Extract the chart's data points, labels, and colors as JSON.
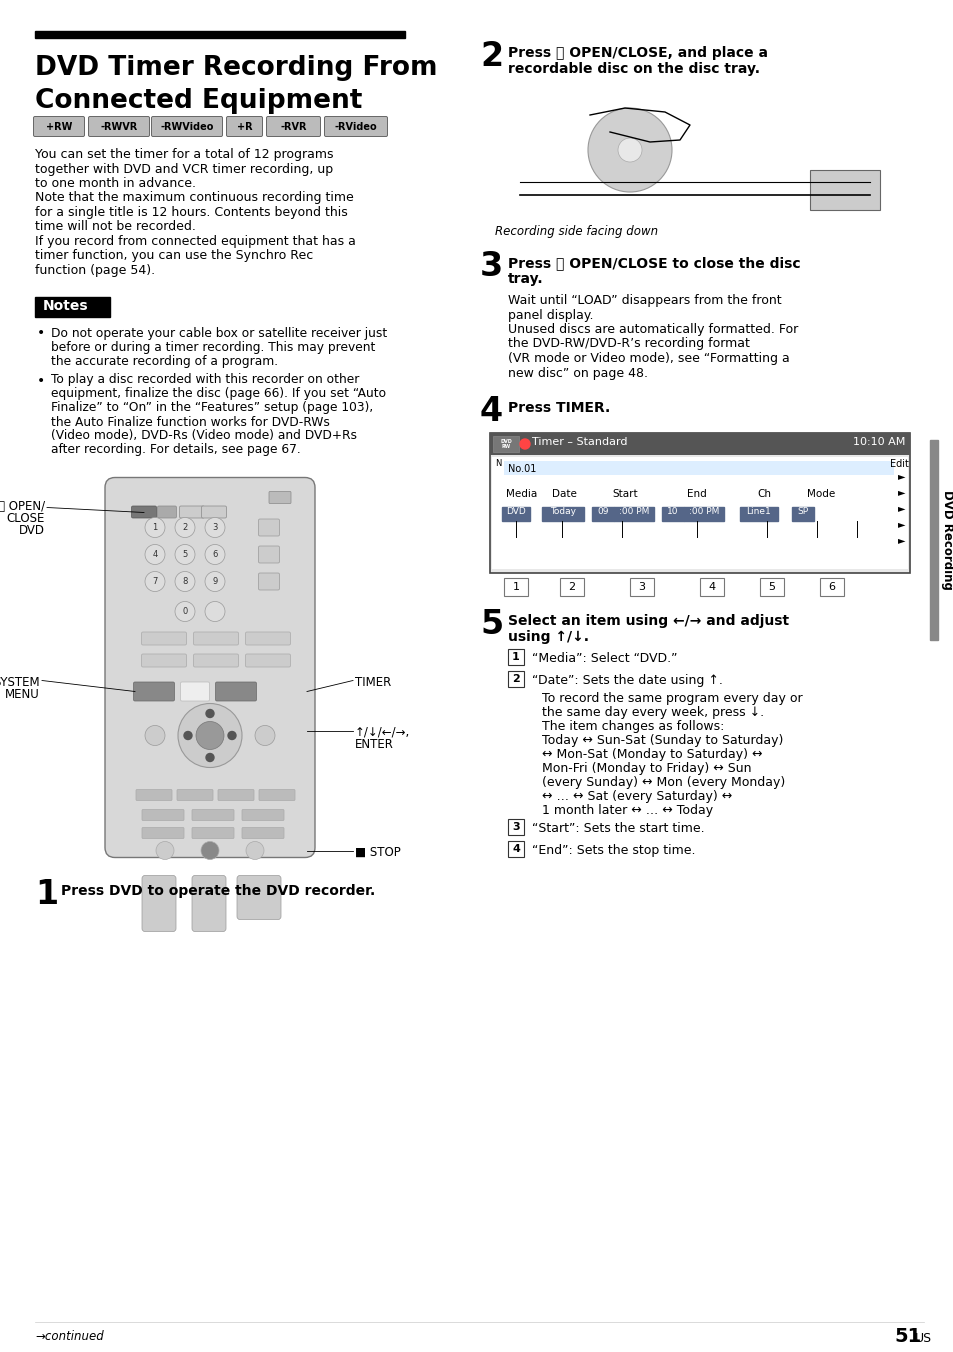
{
  "bg_color": "#ffffff",
  "text_color": "#000000",
  "title_line1": "DVD Timer Recording From",
  "title_line2": "Connected Equipment",
  "disc_labels": [
    "+RW",
    "-RWVR",
    "-RWVideo",
    "+R",
    "-RVR",
    "-RVideo"
  ],
  "body_text": [
    "You can set the timer for a total of 12 programs",
    "together with DVD and VCR timer recording, up",
    "to one month in advance.",
    "Note that the maximum continuous recording time",
    "for a single title is 12 hours. Contents beyond this",
    "time will not be recorded.",
    "If you record from connected equipment that has a",
    "timer function, you can use the Synchro Rec",
    "function (page 54)."
  ],
  "notes_header": "Notes",
  "bullet1": "Do not operate your cable box or satellite receiver just before or during a timer recording. This may prevent the accurate recording of a program.",
  "bullet2_lines": [
    "To play a disc recorded with this recorder on other",
    "equipment, finalize the disc (page 66). If you set “Auto",
    "Finalize” to “On” in the “Features” setup (page 103),",
    "the Auto Finalize function works for DVD-RWs",
    "(Video mode), DVD-Rs (Video mode) and DVD+Rs",
    "after recording. For details, see page 67."
  ],
  "step1": "Press DVD to operate the DVD recorder.",
  "step2_line1": "Press ⤒ OPEN/CLOSE, and place a",
  "step2_line2": "recordable disc on the disc tray.",
  "step2_caption": "Recording side facing down",
  "step3_line1": "Press ⤒ OPEN/CLOSE to close the disc",
  "step3_line2": "tray.",
  "step3_body": [
    "Wait until “LOAD” disappears from the front",
    "panel display.",
    "Unused discs are automatically formatted. For",
    "the DVD-RW/DVD-R’s recording format",
    "(VR mode or Video mode), see “Formatting a",
    "new disc” on page 48."
  ],
  "step4": "Press TIMER.",
  "step5_line1": "Select an item using ←/→ and adjust",
  "step5_line2": "using ↑/↓.",
  "item1": "“Media”: Select “DVD.”",
  "item2": "“Date”: Sets the date using ↑.",
  "date_detail": [
    "To record the same program every day or",
    "the same day every week, press ↓.",
    "The item changes as follows:",
    "Today ↔ Sun-Sat (Sunday to Saturday)",
    "↔ Mon-Sat (Monday to Saturday) ↔",
    "Mon-Fri (Monday to Friday) ↔ Sun",
    "(every Sunday) ↔ Mon (every Monday)",
    "↔ … ↔ Sat (every Saturday) ↔",
    "1 month later ↔ … ↔ Today"
  ],
  "item3": "“Start”: Sets the start time.",
  "item4": "“End”: Sets the stop time.",
  "side_label": "DVD Recording",
  "footer_left": "→continued",
  "footer_right_num": "51",
  "footer_right_sup": "US"
}
